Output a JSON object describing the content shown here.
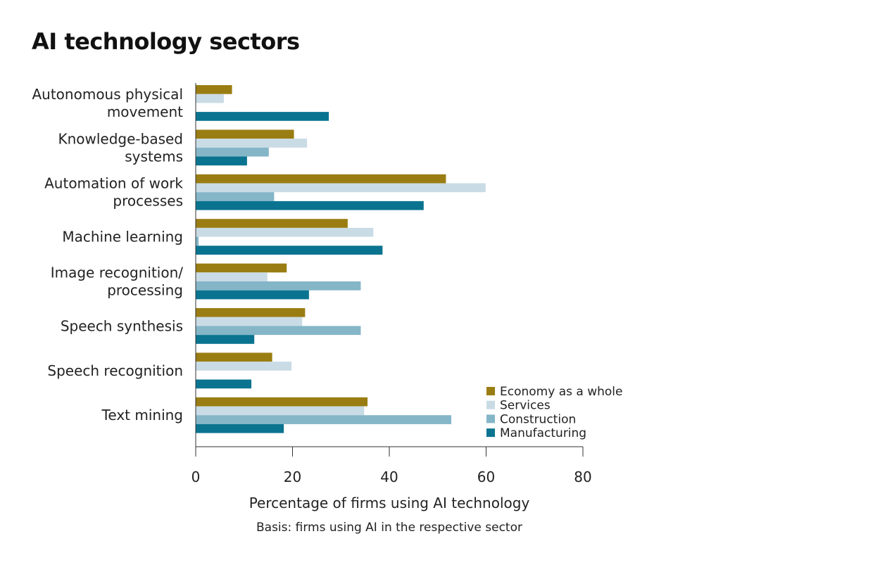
{
  "chart_data": {
    "type": "bar",
    "orientation": "horizontal",
    "title": "AI technology sectors",
    "xlabel": "Percentage of firms using AI technology",
    "note": "Basis: firms using AI in the respective sector",
    "xlim": [
      0,
      80
    ],
    "xticks": [
      0,
      20,
      40,
      60,
      80
    ],
    "categories": [
      [
        "Autonomous physical",
        "movement"
      ],
      [
        "Knowledge-based",
        "systems"
      ],
      [
        "Automation of work",
        "processes"
      ],
      [
        "Machine learning"
      ],
      [
        "Image recognition/",
        "processing"
      ],
      [
        "Speech synthesis"
      ],
      [
        "Speech recognition"
      ],
      [
        "Text mining"
      ]
    ],
    "series": [
      {
        "name": "Economy as a whole",
        "color": "#9a7d12",
        "values": [
          7.5,
          20.3,
          51.7,
          31.4,
          18.8,
          22.6,
          15.8,
          35.5
        ]
      },
      {
        "name": "Services",
        "color": "#c9dbe5",
        "values": [
          5.8,
          23.0,
          59.9,
          36.7,
          14.8,
          22.0,
          19.8,
          34.8
        ]
      },
      {
        "name": "Construction",
        "color": "#84b6c8",
        "values": [
          0,
          15.1,
          16.2,
          0.6,
          34.1,
          34.1,
          0,
          52.8
        ]
      },
      {
        "name": "Manufacturing",
        "color": "#0a7490",
        "values": [
          27.5,
          10.6,
          47.1,
          38.6,
          23.4,
          12.1,
          11.5,
          18.2
        ]
      }
    ],
    "legend_position": "bottom-right"
  }
}
